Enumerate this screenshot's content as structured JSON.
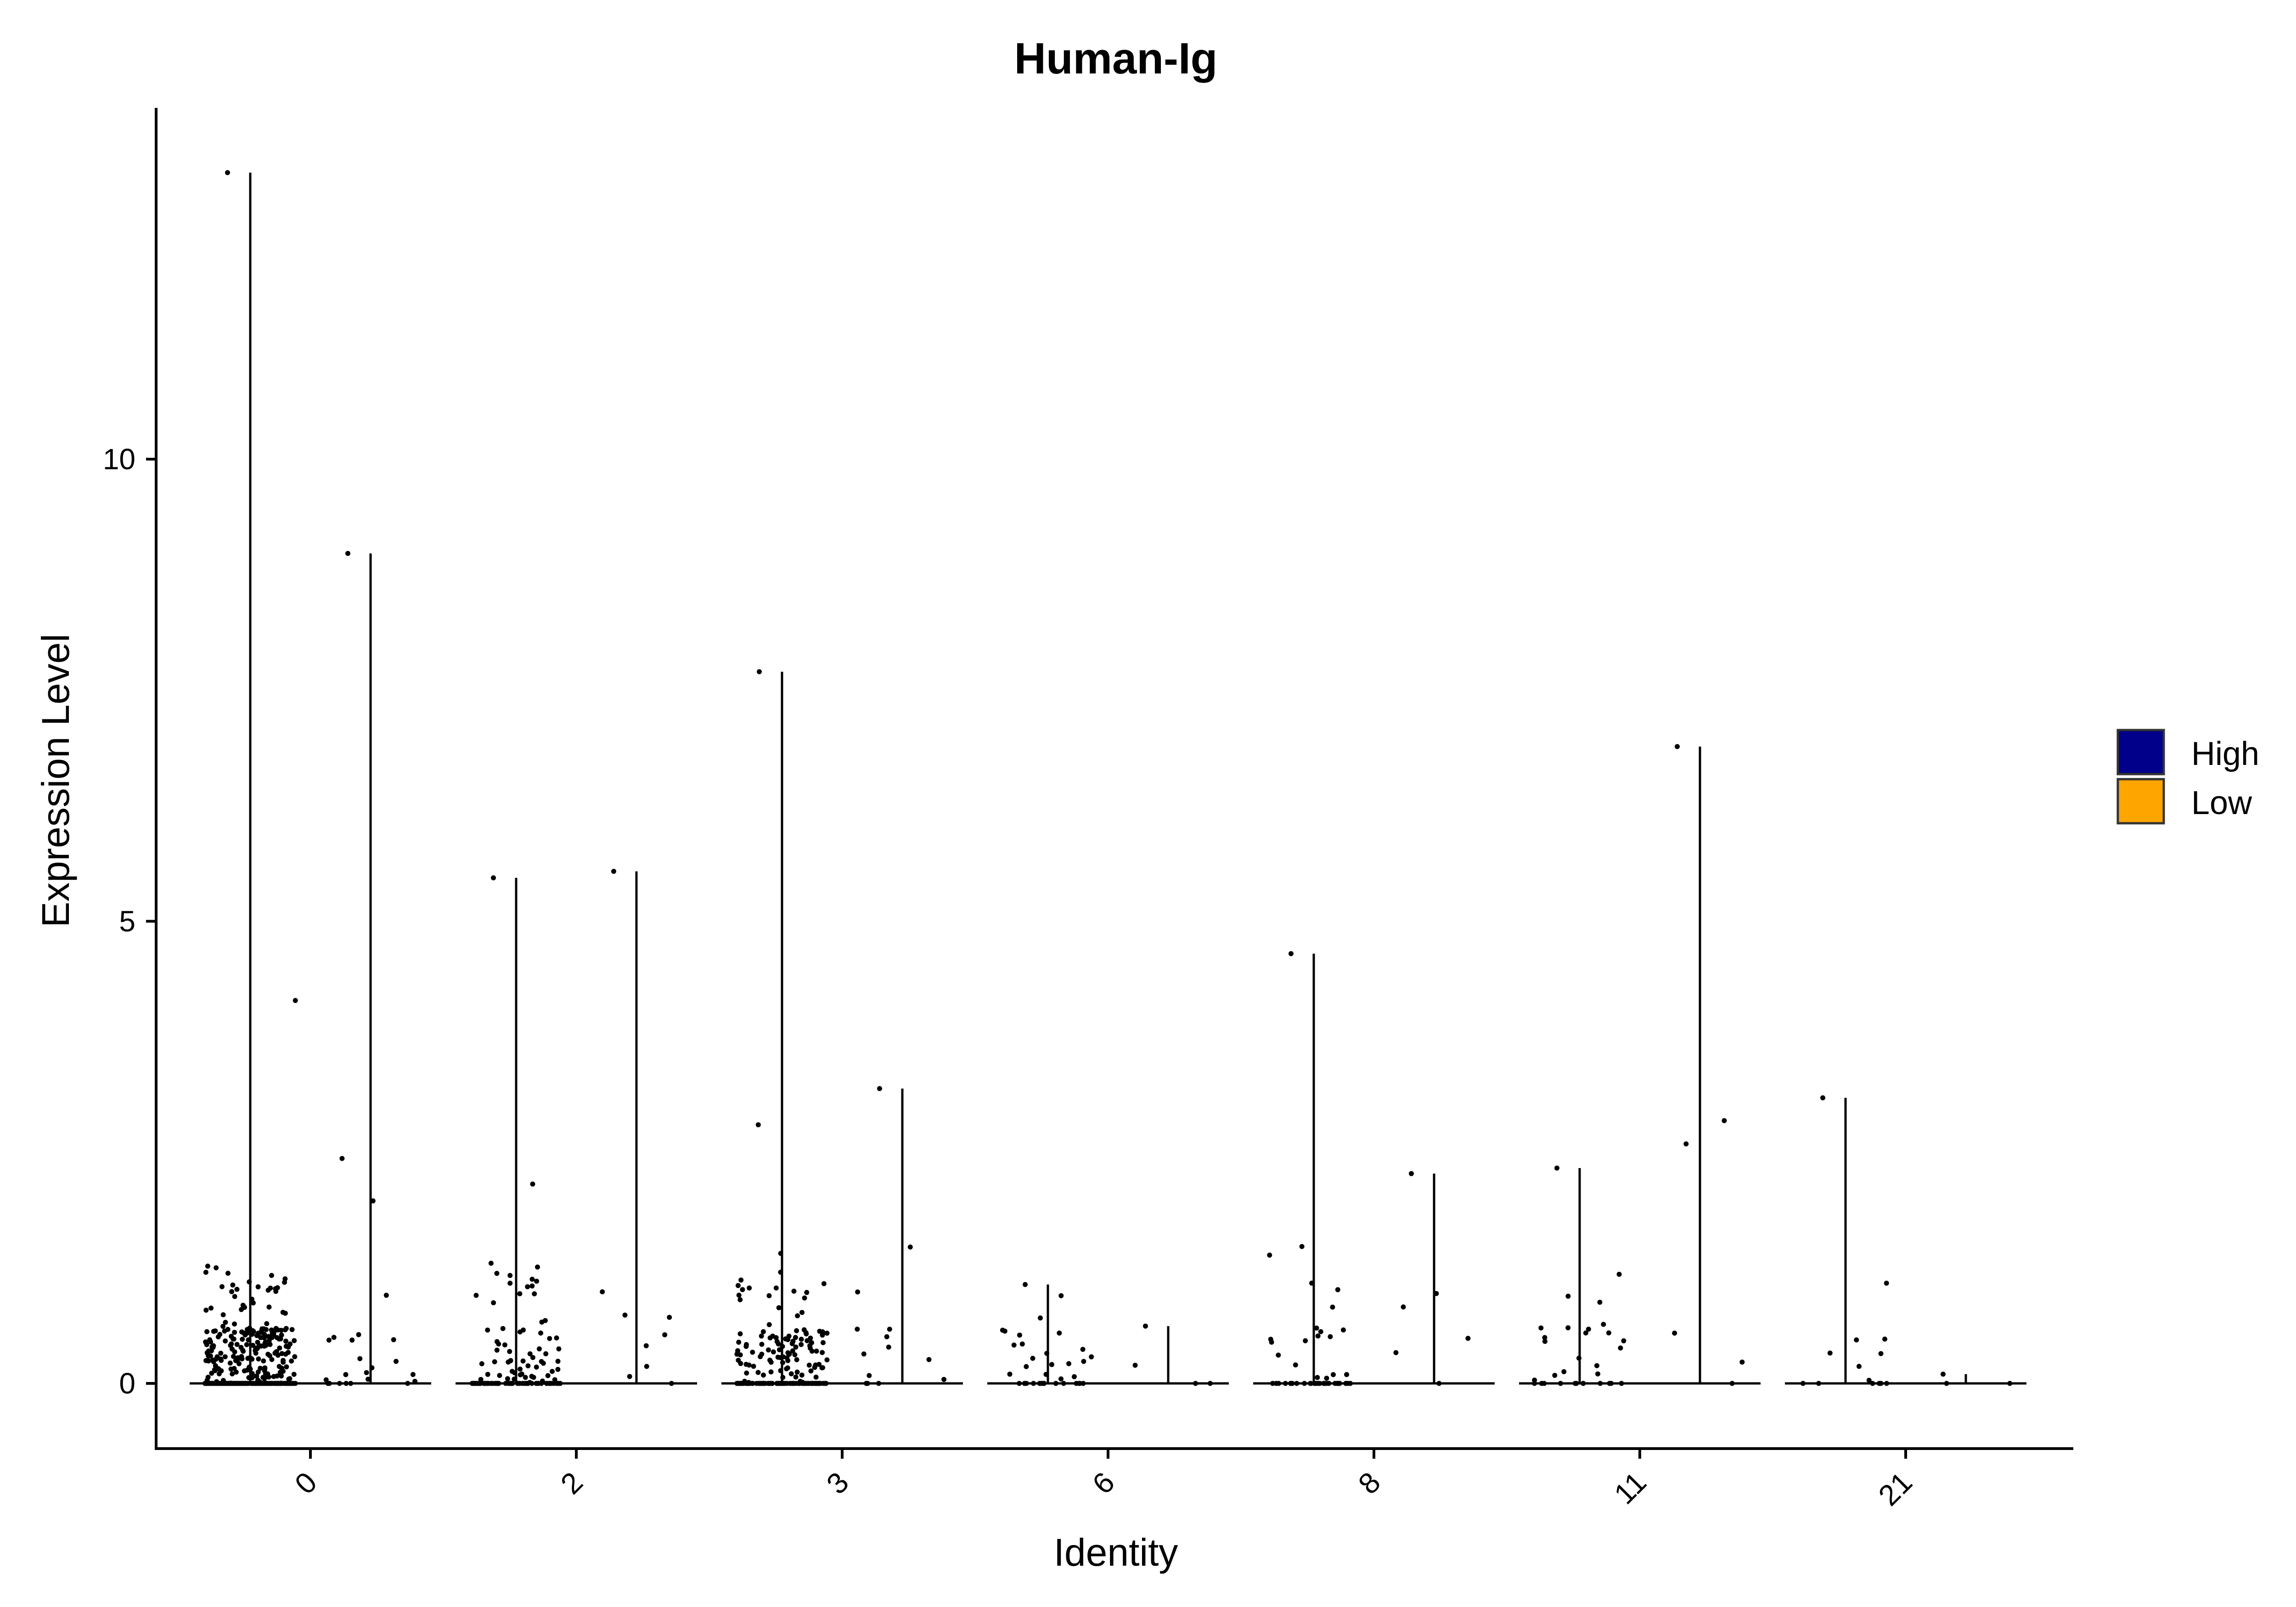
{
  "chart_data": {
    "type": "violin",
    "title": "Human-Ig",
    "xlabel": "Identity",
    "ylabel": "Expression Level",
    "ylim": [
      -0.65,
      13.6
    ],
    "y_ticks": [
      0,
      5,
      10
    ],
    "y_tick_labels": [
      "0",
      "5",
      "10"
    ],
    "categories": [
      "0",
      "2",
      "3",
      "6",
      "8",
      "11",
      "21"
    ],
    "legend": {
      "position": "right",
      "entries": [
        {
          "name": "High",
          "color": "#00008B"
        },
        {
          "name": "Low",
          "color": "#FFA500"
        }
      ]
    },
    "series": [
      {
        "name": "High",
        "max": [
          13.1,
          5.47,
          7.7,
          1.07,
          4.65,
          2.33,
          3.09
        ],
        "n_points": [
          420,
          120,
          210,
          35,
          50,
          32,
          14
        ]
      },
      {
        "name": "Low",
        "max": [
          8.98,
          5.54,
          3.19,
          0.62,
          2.27,
          6.89,
          0.1
        ],
        "n_points": [
          24,
          9,
          14,
          4,
          6,
          6,
          3
        ]
      }
    ]
  }
}
